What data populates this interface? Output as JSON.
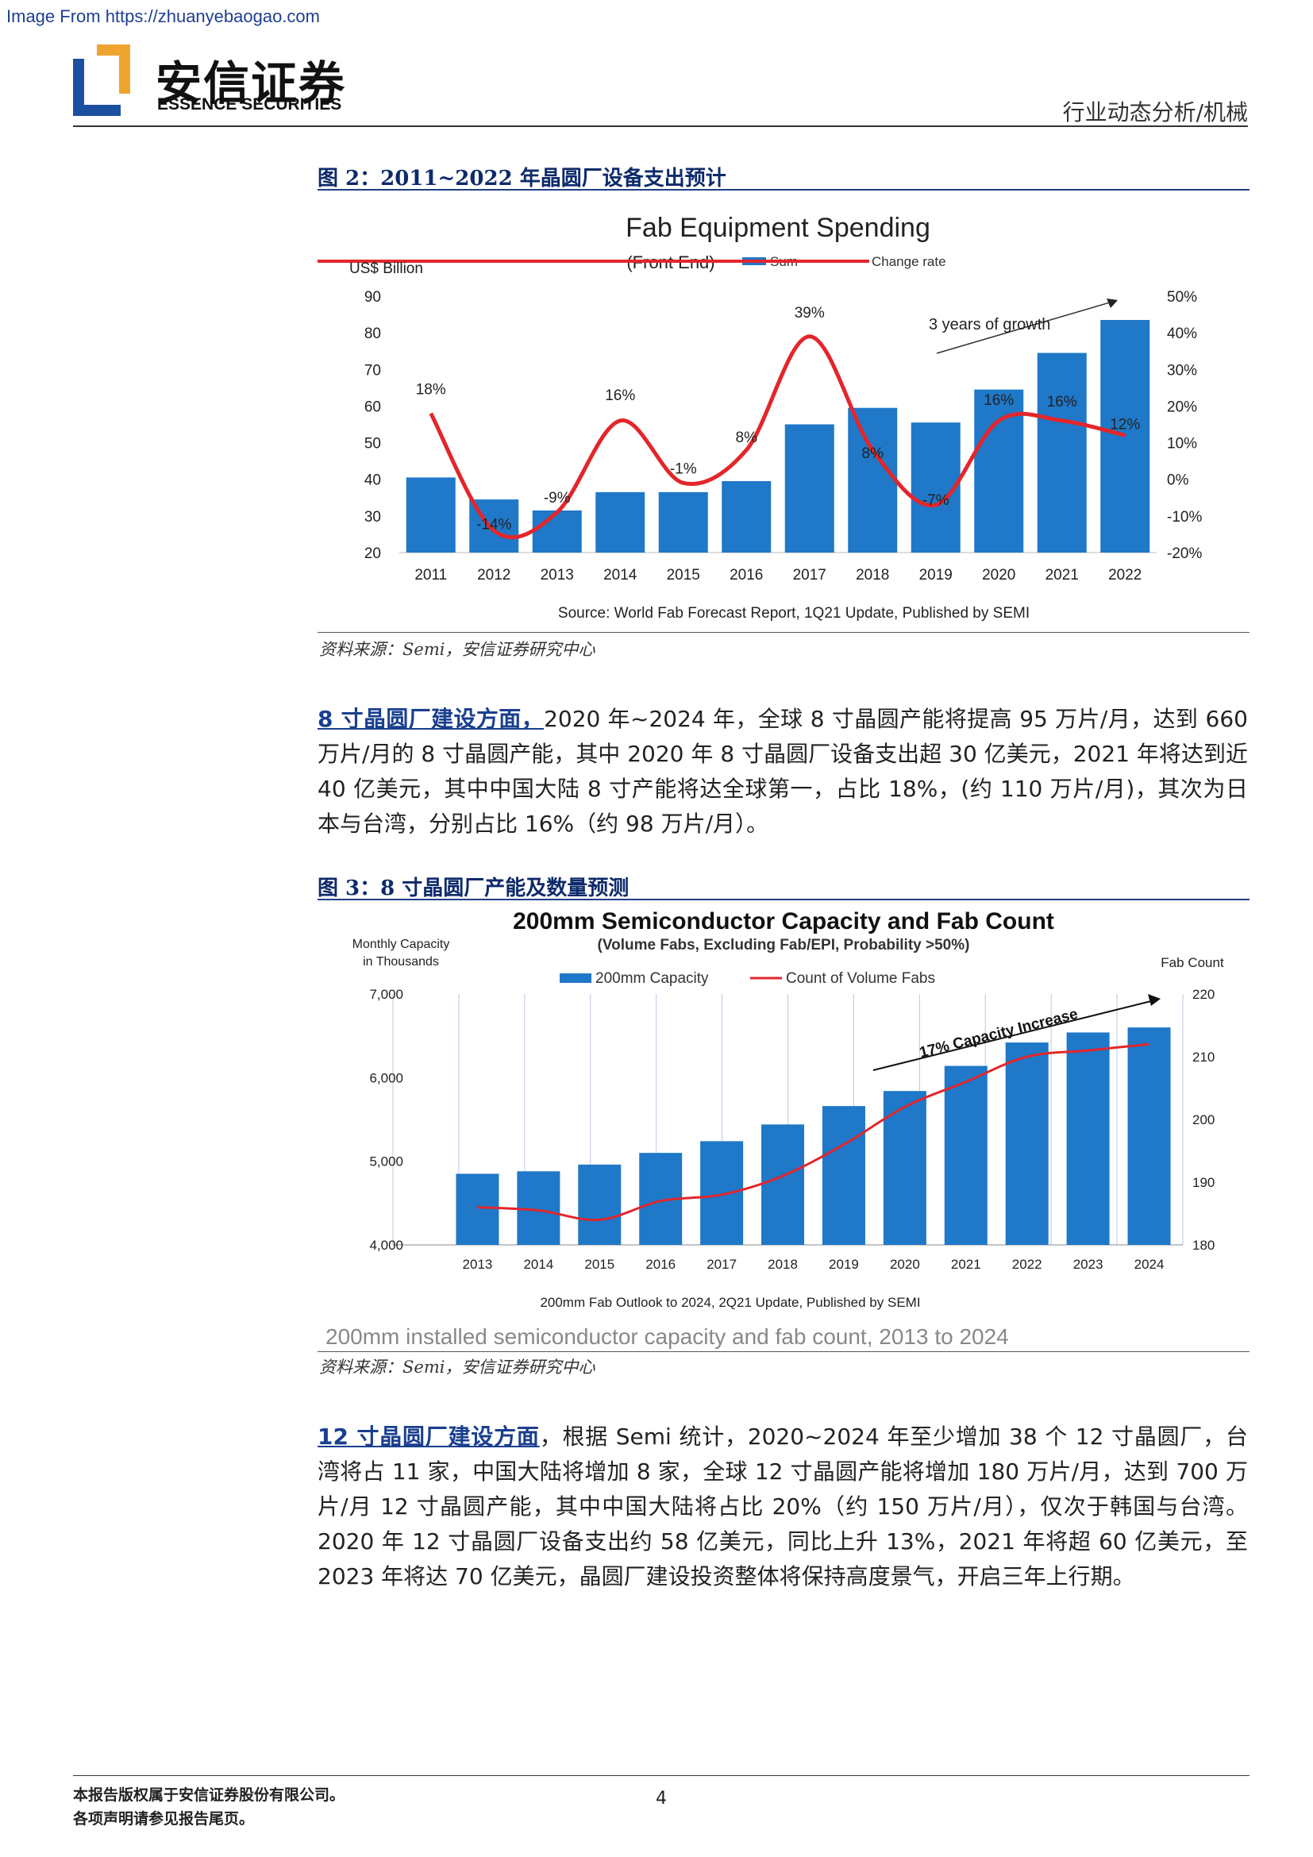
{
  "watermark": "Image From https://zhuanyebaogao.com",
  "logo": {
    "cn": "安信证券",
    "en": "ESSENCE SECURITIES"
  },
  "header": {
    "category": "行业动态分析/机械"
  },
  "figure2": {
    "title": "图 2：2011~2022 年晶圆厂设备支出预计",
    "source": "资料来源：Semi，安信证券研究中心"
  },
  "figure3": {
    "title": "图 3：8 寸晶圆厂产能及数量预测",
    "source": "资料来源：Semi，安信证券研究中心"
  },
  "paragraph1": {
    "lead": "8 寸晶圆厂建设方面，",
    "body": "2020 年~2024 年，全球 8 寸晶圆产能将提高 95 万片/月，达到 660 万片/月的 8 寸晶圆产能，其中 2020 年 8 寸晶圆厂设备支出超 30 亿美元，2021 年将达到近 40 亿美元，其中中国大陆 8 寸产能将达全球第一，占比 18%，(约 110 万片/月)，其次为日本与台湾，分别占比 16%（约 98 万片/月）。"
  },
  "paragraph2": {
    "lead": "12 寸晶圆厂建设方面",
    "body": "，根据 Semi 统计，2020~2024 年至少增加 38 个 12 寸晶圆厂，台湾将占 11 家，中国大陆将增加 8 家，全球 12 寸晶圆产能将增加 180 万片/月，达到 700 万片/月 12 寸晶圆产能，其中中国大陆将占比 20%（约 150 万片/月），仅次于韩国与台湾。2020 年 12 寸晶圆厂设备支出约 58 亿美元，同比上升 13%，2021 年将超 60 亿美元，至 2023 年将达 70 亿美元，晶圆厂建设投资整体将保持高度景气，开启三年上行期。"
  },
  "footer": {
    "line1": "本报告版权属于安信证券股份有限公司。",
    "line2": "各项声明请参见报告尾页。",
    "page": "4"
  },
  "colors": {
    "bar": "#1f78c8",
    "line": "#e3262b",
    "title_blue": "#0d2a6b"
  },
  "chart_data": [
    {
      "type": "bar",
      "title": "Fab Equipment Spending",
      "subtitle": "(Front End)",
      "ylabel": "US$ Billion",
      "categories": [
        "2011",
        "2012",
        "2013",
        "2014",
        "2015",
        "2016",
        "2017",
        "2018",
        "2019",
        "2020",
        "2021",
        "2022"
      ],
      "series": [
        {
          "name": "Sum",
          "values": [
            40.5,
            34.5,
            31.5,
            36.5,
            36.5,
            39.5,
            55,
            59.5,
            55.5,
            64.5,
            74.5,
            83.5
          ]
        },
        {
          "name": "Change rate",
          "values": [
            18,
            -14,
            -9,
            16,
            -1,
            8,
            39,
            8,
            -7,
            16,
            16,
            12
          ]
        }
      ],
      "data_labels": [
        "18%",
        "-14%",
        "-9%",
        "16%",
        "-1%",
        "8%",
        "39%",
        "8%",
        "-7%",
        "16%",
        "16%",
        "12%"
      ],
      "ylim": [
        20,
        90
      ],
      "yticks": [
        "20",
        "30",
        "40",
        "50",
        "60",
        "70",
        "80",
        "90"
      ],
      "y2lim": [
        -20,
        50
      ],
      "y2ticks": [
        "-20%",
        "-10%",
        "0%",
        "10%",
        "20%",
        "30%",
        "40%",
        "50%"
      ],
      "annotation": "3 years of growth",
      "source_note": "Source: World Fab Forecast Report, 1Q21 Update, Published by SEMI",
      "legend": "top"
    },
    {
      "type": "bar",
      "title": "200mm Semiconductor Capacity and Fab Count",
      "subtitle": "(Volume Fabs, Excluding Fab/EPI, Probability >50%)",
      "ylabel": "Monthly Capacity in Thousands",
      "y2label": "Fab Count",
      "categories": [
        "2013",
        "2014",
        "2015",
        "2016",
        "2017",
        "2018",
        "2019",
        "2020",
        "2021",
        "2022",
        "2023",
        "2024"
      ],
      "series": [
        {
          "name": "200mm Capacity",
          "values": [
            4850,
            4880,
            4960,
            5100,
            5240,
            5440,
            5660,
            5840,
            6140,
            6420,
            6540,
            6600
          ]
        },
        {
          "name": "Count of Volume Fabs",
          "values": [
            186,
            185.5,
            184,
            187,
            188,
            191,
            196,
            202,
            206,
            210,
            211,
            212
          ]
        }
      ],
      "ylim": [
        4000,
        7000
      ],
      "yticks": [
        "4,000",
        "5,000",
        "6,000",
        "7,000"
      ],
      "y2lim": [
        180,
        220
      ],
      "y2ticks": [
        "180",
        "190",
        "200",
        "210",
        "220"
      ],
      "annotation": "17% Capacity Increase",
      "source_note": "200mm Fab Outlook to 2024, 2Q21 Update, Published by SEMI",
      "caption": "200mm installed semiconductor capacity and fab count, 2013 to 2024",
      "legend": "top"
    }
  ]
}
